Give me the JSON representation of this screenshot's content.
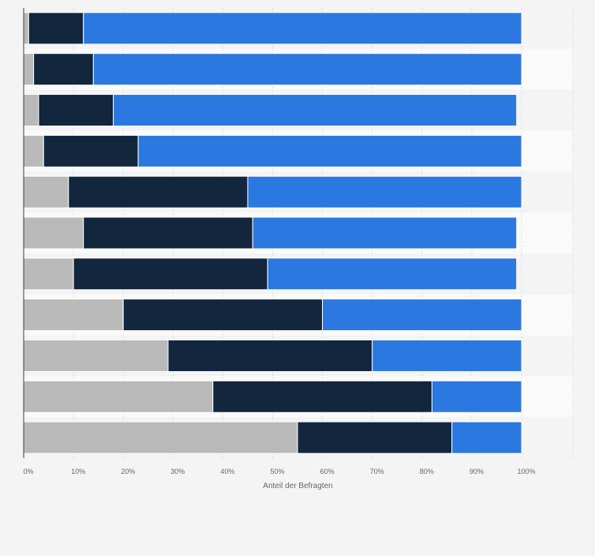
{
  "chart_data": {
    "type": "bar",
    "orientation": "horizontal",
    "stacked": true,
    "xlabel": "Anteil der Befragten",
    "xlim": [
      0,
      100
    ],
    "x_ticks": [
      "0%",
      "10%",
      "20%",
      "30%",
      "40%",
      "50%",
      "60%",
      "70%",
      "80%",
      "90%",
      "100%"
    ],
    "grid": true,
    "category_count": 11,
    "series": [
      {
        "color": "#b9b9b9",
        "values": [
          1,
          2,
          3,
          4,
          9,
          12,
          10,
          20,
          29,
          38,
          55
        ]
      },
      {
        "color": "#12263d",
        "values": [
          11,
          12,
          15,
          19,
          36,
          34,
          39,
          40,
          41,
          44,
          31
        ]
      },
      {
        "color": "#2a78e0",
        "values": [
          88,
          86,
          81,
          77,
          55,
          53,
          50,
          40,
          30,
          18,
          14
        ]
      }
    ]
  }
}
